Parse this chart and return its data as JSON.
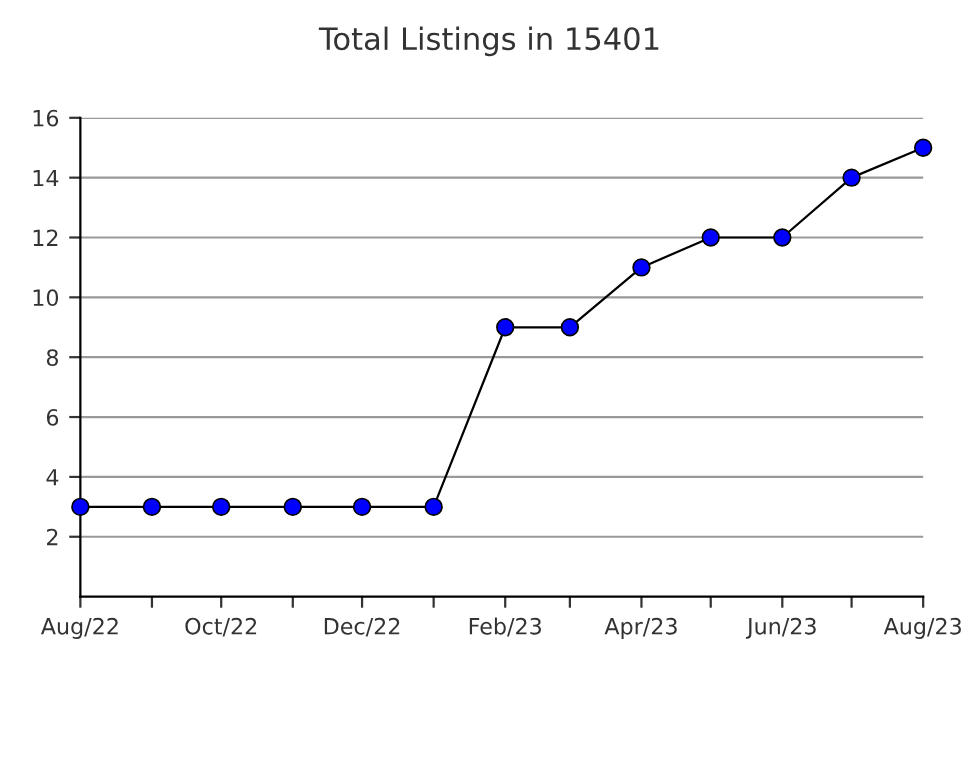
{
  "chart_data": {
    "type": "line",
    "title": "Total Listings in 15401",
    "x": [
      "2022-08",
      "2022-09",
      "2022-10",
      "2022-11",
      "2022-12",
      "2023-01",
      "2023-02",
      "2023-03",
      "2023-04",
      "2023-05",
      "2023-06",
      "2023-07",
      "2023-08"
    ],
    "series": [
      {
        "color": "#0000ff",
        "values": [
          3,
          3,
          3,
          3,
          3,
          3,
          9,
          9,
          11,
          12,
          12,
          14,
          15
        ]
      }
    ],
    "xlim": [
      "2022-08",
      "2023-08"
    ],
    "xticks": [
      {
        "value": "2022-08",
        "label": "Aug/22"
      },
      {
        "value": "2022-09",
        "label": null
      },
      {
        "value": "2022-10",
        "label": "Oct/22"
      },
      {
        "value": "2022-11",
        "label": null
      },
      {
        "value": "2022-12",
        "label": "Dec/22"
      },
      {
        "value": "2023-01",
        "label": null
      },
      {
        "value": "2023-02",
        "label": "Feb/23"
      },
      {
        "value": "2023-03",
        "label": null
      },
      {
        "value": "2023-04",
        "label": "Apr/23"
      },
      {
        "value": "2023-05",
        "label": null
      },
      {
        "value": "2023-06",
        "label": "Jun/23"
      },
      {
        "value": "2023-07",
        "label": null
      },
      {
        "value": "2023-08",
        "label": "Aug/23"
      }
    ],
    "ylim": [
      0,
      16
    ],
    "yticks": [
      2,
      4,
      6,
      8,
      10,
      12,
      14,
      16
    ],
    "grid": "y",
    "marker": "circle",
    "line_style": "solid",
    "legend": false
  }
}
